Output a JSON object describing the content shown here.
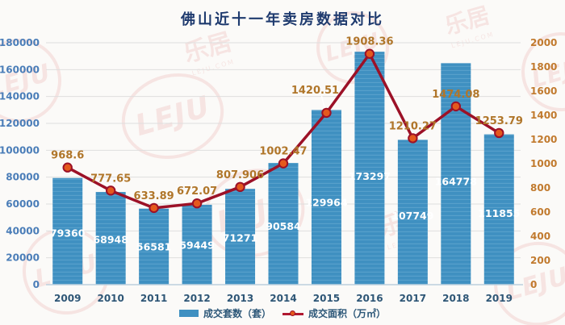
{
  "title": "佛山近十一年卖房数据对比",
  "watermark": {
    "brand_text": "乐居",
    "logo_text": "LEJU",
    "sub_text": "LEJU.COM"
  },
  "legend": {
    "bars_label": "成交套数（套）",
    "line_label": "成交面积（万㎡）"
  },
  "colors": {
    "title": "#1e3a6e",
    "bar": "#3f90c1",
    "bar_stripe": "#57a0cb",
    "line": "#9c1127",
    "marker": "#e4591d",
    "left_axis": "#4a7db8",
    "right_axis": "#c17a2e",
    "line_label": "#b0762a",
    "gridline": "#dedede",
    "watermark": "#d23a3a"
  },
  "chart_data": {
    "type": "combo-bar-line",
    "title": "佛山近十一年卖房数据对比",
    "categories": [
      "2009",
      "2010",
      "2011",
      "2012",
      "2013",
      "2014",
      "2015",
      "2016",
      "2017",
      "2018",
      "2019"
    ],
    "series": [
      {
        "name": "成交套数（套）",
        "type": "bar",
        "axis": "left",
        "values": [
          79360,
          68948,
          56581,
          59449,
          71271,
          90584,
          129964,
          173297,
          107749,
          164778,
          111855
        ]
      },
      {
        "name": "成交面积（万㎡）",
        "type": "line",
        "axis": "right",
        "values": [
          968.6,
          777.65,
          633.89,
          672.07,
          807.906,
          1002.47,
          1420.51,
          1908.36,
          1210.27,
          1474.08,
          1253.79
        ]
      }
    ],
    "left_axis": {
      "min": 0,
      "max": 180000,
      "step": 20000
    },
    "right_axis": {
      "min": 0,
      "max": 2000,
      "step": 200
    },
    "grid": true,
    "legend_position": "bottom",
    "label_offsets": [
      {
        "index": 6,
        "dx": -14,
        "dy": -13,
        "leader": true
      }
    ]
  }
}
